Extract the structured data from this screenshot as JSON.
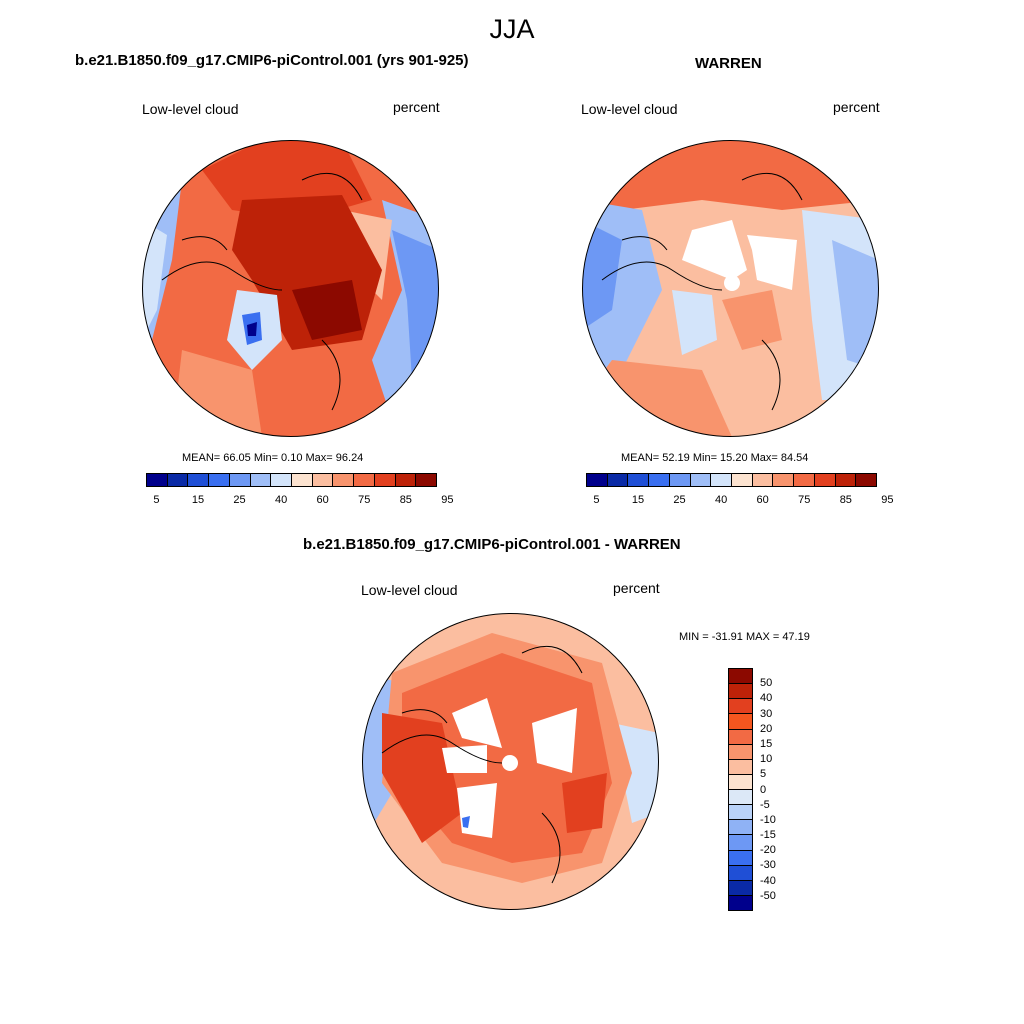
{
  "figure_title": "JJA",
  "panel_left": {
    "title": "b.e21.B1850.f09_g17.CMIP6-piControl.001 (yrs 901-925)",
    "variable": "Low-level cloud",
    "units": "percent",
    "stats": "MEAN=  66.05  Min=   0.10  Max=  96.24"
  },
  "panel_right": {
    "title": "WARREN",
    "variable": "Low-level cloud",
    "units": "percent",
    "stats": "MEAN=  52.19  Min=  15.20  Max=  84.54"
  },
  "panel_diff": {
    "title": "b.e21.B1850.f09_g17.CMIP6-piControl.001 - WARREN",
    "variable": "Low-level cloud",
    "units": "percent",
    "stats": "MIN = -31.91 MAX =  47.19"
  },
  "colorbar_abs": {
    "colors": [
      "#00008c",
      "#0a2aa6",
      "#1f4fd6",
      "#3a6ff0",
      "#6d98f4",
      "#9fbef7",
      "#d3e4fa",
      "#fce3d0",
      "#fbbea0",
      "#f8946d",
      "#f26a44",
      "#e2401f",
      "#bd2208",
      "#8c0900"
    ],
    "tick_labels": [
      "5",
      "15",
      "25",
      "40",
      "60",
      "75",
      "85",
      "95"
    ],
    "tick_positions": [
      0.5,
      2.5,
      4.5,
      6.5,
      8.5,
      10.5,
      12.5,
      14.5
    ]
  },
  "colorbar_diff": {
    "colors_top_to_bottom": [
      "#8c0900",
      "#bd2208",
      "#e2401f",
      "#f4561f",
      "#f26a44",
      "#f8946d",
      "#fbbea0",
      "#fce3d0",
      "#dce8f7",
      "#b9d2f8",
      "#8fb2f5",
      "#6d98f4",
      "#3a6ff0",
      "#1f4fd6",
      "#0a2aa6",
      "#00008c"
    ],
    "tick_labels": [
      "50",
      "40",
      "30",
      "20",
      "15",
      "10",
      "5",
      "0",
      "-5",
      "-10",
      "-15",
      "-20",
      "-30",
      "-40",
      "-50"
    ]
  }
}
